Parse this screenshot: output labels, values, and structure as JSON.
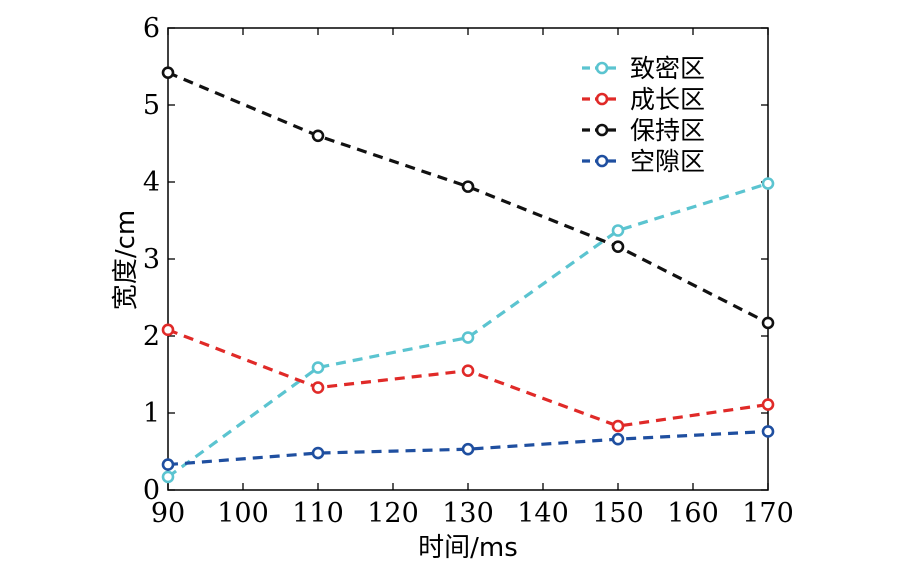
{
  "chart_data": {
    "type": "line",
    "xlabel": "时间/ms",
    "ylabel": "宽度/cm",
    "xlim": [
      90,
      170
    ],
    "ylim": [
      0,
      6
    ],
    "xticks": [
      90,
      100,
      110,
      120,
      130,
      140,
      150,
      160,
      170
    ],
    "yticks": [
      0,
      1,
      2,
      3,
      4,
      5,
      6
    ],
    "x": [
      90,
      110,
      130,
      150,
      170
    ],
    "grid": false,
    "legend_position": "top-right",
    "series": [
      {
        "name": "致密区",
        "color": "#5bc4d0",
        "values": [
          0.17,
          1.59,
          1.98,
          3.37,
          3.98
        ]
      },
      {
        "name": "成长区",
        "color": "#e02a28",
        "values": [
          2.08,
          1.33,
          1.55,
          0.83,
          1.11
        ]
      },
      {
        "name": "保持区",
        "color": "#111111",
        "values": [
          5.42,
          4.6,
          3.94,
          3.16,
          2.17
        ]
      },
      {
        "name": "空隙区",
        "color": "#1f4fa0",
        "values": [
          0.33,
          0.48,
          0.53,
          0.66,
          0.76
        ]
      }
    ]
  }
}
